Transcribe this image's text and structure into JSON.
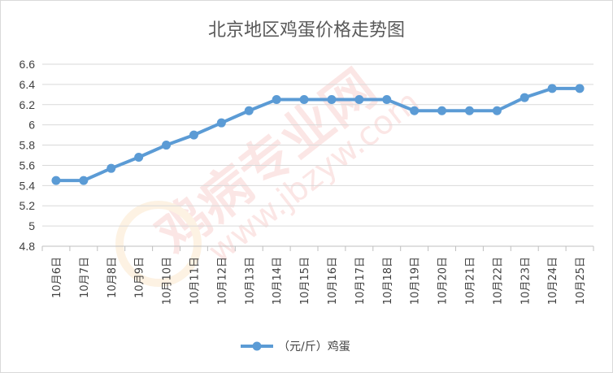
{
  "chart_data": {
    "type": "line",
    "title": "北京地区鸡蛋价格走势图",
    "xlabel": "",
    "ylabel": "",
    "categories": [
      "10月6日",
      "10月7日",
      "10月8日",
      "10月9日",
      "10月10日",
      "10月11日",
      "10月12日",
      "10月13日",
      "10月14日",
      "10月15日",
      "10月16日",
      "10月17日",
      "10月18日",
      "10月19日",
      "10月20日",
      "10月21日",
      "10月22日",
      "10月23日",
      "10月24日",
      "10月25日"
    ],
    "series": [
      {
        "name": "（元/斤）鸡蛋",
        "values": [
          5.45,
          5.45,
          5.57,
          5.68,
          5.8,
          5.9,
          6.02,
          6.14,
          6.25,
          6.25,
          6.25,
          6.25,
          6.25,
          6.14,
          6.14,
          6.14,
          6.14,
          6.27,
          6.36,
          6.36
        ],
        "color": "#5b9bd5"
      }
    ],
    "ylim": [
      4.8,
      6.6
    ],
    "yticks": [
      "4.8",
      "5",
      "5.2",
      "5.4",
      "5.6",
      "5.8",
      "6",
      "6.2",
      "6.4",
      "6.6"
    ],
    "grid": true,
    "legend_position": "bottom"
  },
  "watermark": {
    "main": "鸡病专业网",
    "url": "www.jbzyw.com"
  }
}
